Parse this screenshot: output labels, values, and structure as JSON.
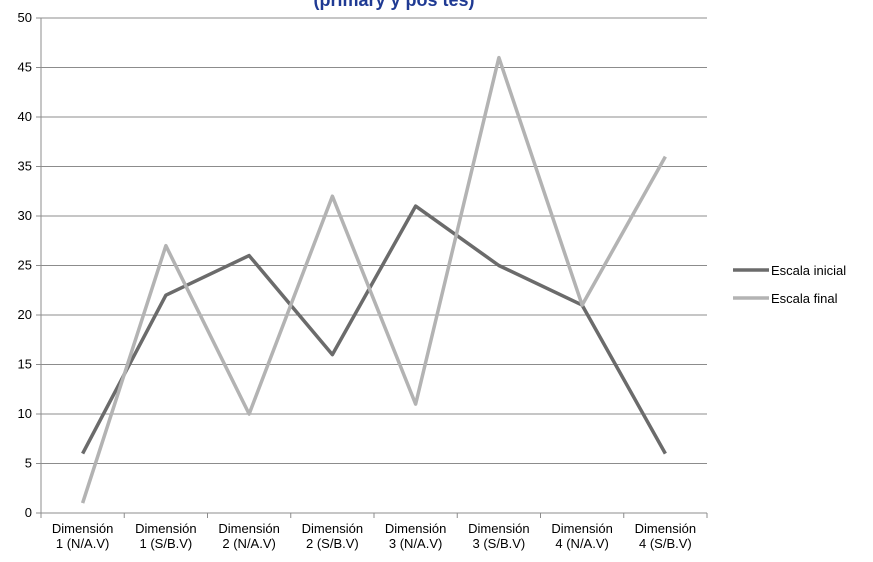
{
  "chart_data": {
    "type": "line",
    "title": "(primary y pos tes)",
    "categories": [
      "Dimensión 1 (N/A.V)",
      "Dimensión 1 (S/B.V)",
      "Dimensión 2 (N/A.V)",
      "Dimensión 2 (S/B.V)",
      "Dimensión 3 (N/A.V)",
      "Dimensión 3 (S/B.V)",
      "Dimensión 4 (N/A.V)",
      "Dimensión 4 (S/B.V)"
    ],
    "series": [
      {
        "name": "Escala inicial",
        "color": "#6b6b6b",
        "values": [
          6,
          22,
          26,
          16,
          31,
          25,
          21,
          6
        ]
      },
      {
        "name": "Escala final",
        "color": "#b3b3b3",
        "values": [
          1,
          27,
          10,
          32,
          11,
          46,
          21,
          36
        ]
      }
    ],
    "ylim": [
      0,
      50
    ],
    "ytick_step": 5,
    "grid": true,
    "legend": "right"
  }
}
